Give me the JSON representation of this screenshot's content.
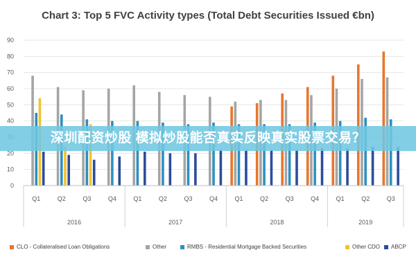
{
  "chart_data": {
    "type": "bar",
    "title": "Chart 3: Top 5 FVC Activity types (Total Debt Securities Issued €bn)",
    "ylim": [
      0,
      90
    ],
    "yticks": [
      0,
      10,
      20,
      30,
      40,
      50,
      60,
      70,
      80,
      90
    ],
    "grid": true,
    "legend_position": "bottom",
    "categories": [
      "Q1",
      "Q2",
      "Q3",
      "Q4",
      "Q1",
      "Q2",
      "Q3",
      "Q4",
      "Q1",
      "Q2",
      "Q3",
      "Q4",
      "Q1",
      "Q2",
      "Q3"
    ],
    "groups": [
      {
        "label": "2016",
        "count": 4
      },
      {
        "label": "2017",
        "count": 4
      },
      {
        "label": "2018",
        "count": 4
      },
      {
        "label": "2019",
        "count": 3
      }
    ],
    "series": [
      {
        "name": "CLO - Collateralised Loan Obligations",
        "color": "#e8762d",
        "values": [
          null,
          null,
          null,
          null,
          null,
          null,
          null,
          null,
          49,
          51,
          57,
          61,
          68,
          75,
          83
        ]
      },
      {
        "name": "Other",
        "color": "#a5a5a5",
        "values": [
          68,
          61,
          59,
          60,
          62,
          58,
          56,
          55,
          52,
          53,
          53,
          56,
          60,
          66,
          67
        ]
      },
      {
        "name": "RMBS - Residential Mortgage Backed Securities",
        "color": "#2e8fbf",
        "values": [
          45,
          44,
          41,
          40,
          40,
          39,
          38,
          39,
          38,
          38,
          38,
          39,
          40,
          42,
          41
        ]
      },
      {
        "name": "Other CDO",
        "color": "#f2c12e",
        "values": [
          54,
          24,
          38,
          null,
          null,
          null,
          null,
          null,
          null,
          null,
          null,
          null,
          null,
          null,
          null
        ]
      },
      {
        "name": "ABCP",
        "color": "#2c4d9a",
        "values": [
          21,
          19,
          16,
          18,
          21,
          20,
          20,
          22,
          22,
          22,
          22,
          23,
          23,
          24,
          24
        ]
      }
    ]
  },
  "banner": {
    "text": "深圳配资炒股 模拟炒股能否真实反映真实股票交易？"
  }
}
